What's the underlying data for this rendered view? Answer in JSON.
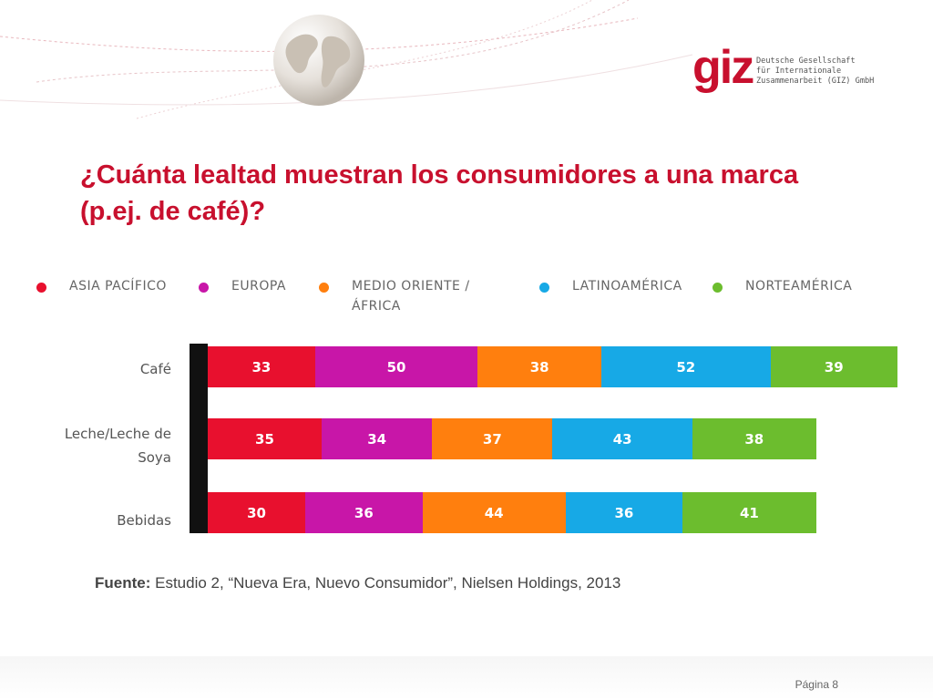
{
  "slide": {
    "title": "¿Cuánta lealtad muestran los consumidores a una marca (p.ej. de café)?",
    "source_label": "Fuente:",
    "source_text": "Estudio 2, “Nueva Era, Nuevo Consumidor”, Nielsen Holdings, 2013",
    "page": "Página 8"
  },
  "logo": {
    "mark": "giz",
    "line1": "Deutsche Gesellschaft",
    "line2": "für Internationale",
    "line3": "Zusammenarbeit (GIZ) GmbH"
  },
  "icons": [
    "globe-icon"
  ],
  "chart_data": {
    "type": "bar",
    "stacked": true,
    "orientation": "horizontal",
    "title": "",
    "categories": [
      "Café",
      "Leche/Leche de Soya",
      "Bebidas"
    ],
    "series": [
      {
        "name": "ASIA PACÍFICO",
        "color": "#e8102e",
        "values": [
          33,
          35,
          30
        ]
      },
      {
        "name": "EUROPA",
        "color": "#c816a8",
        "values": [
          50,
          34,
          36
        ]
      },
      {
        "name": "MEDIO ORIENTE / ÁFRICA",
        "color": "#ff7f0e",
        "values": [
          38,
          37,
          44
        ]
      },
      {
        "name": "LATINOAMÉRICA",
        "color": "#17a9e6",
        "values": [
          52,
          43,
          36
        ]
      },
      {
        "name": "NORTEAMÉRICA",
        "color": "#6cbd2e",
        "values": [
          39,
          38,
          41
        ]
      }
    ],
    "legend_position": "top",
    "grid": false
  }
}
